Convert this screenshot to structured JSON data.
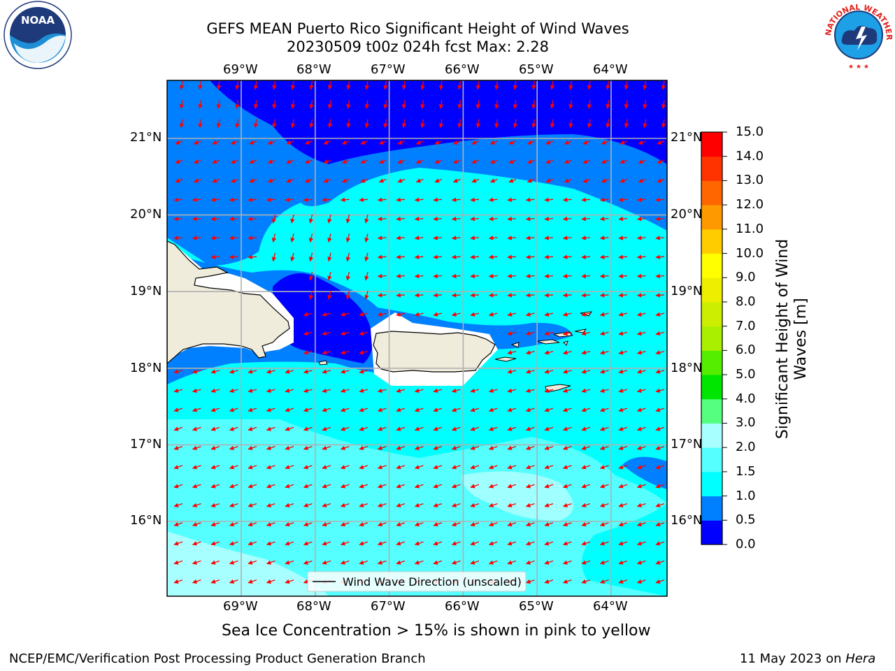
{
  "header": {
    "title_line1": "GEFS MEAN Puerto Rico Significant Height of Wind Waves",
    "title_line2": "20230509 t00z 024h fcst   Max: 2.28"
  },
  "logos": {
    "left": "NOAA",
    "right": "NATIONAL WEATHER SERVICE"
  },
  "map": {
    "lon_labels": [
      "69°W",
      "68°W",
      "67°W",
      "66°W",
      "65°W",
      "64°W"
    ],
    "lat_labels": [
      "21°N",
      "20°N",
      "19°N",
      "18°N",
      "17°N",
      "16°N"
    ],
    "lon_values": [
      -69,
      -68,
      -67,
      -66,
      -65,
      -64
    ],
    "lat_values": [
      21,
      20,
      19,
      18,
      17,
      16
    ],
    "legend_label": "Wind Wave Direction (unscaled)",
    "arrow_color": "#ff0000",
    "land_color": "#efecdc"
  },
  "colorbar": {
    "label": "Significant Height of Wind Waves [m]",
    "ticks": [
      "15.0",
      "14.0",
      "13.0",
      "12.0",
      "11.0",
      "10.0",
      "9.0",
      "8.0",
      "7.0",
      "6.0",
      "5.0",
      "4.0",
      "3.0",
      "2.0",
      "1.5",
      "1.0",
      "0.5",
      "0.0"
    ],
    "colors": [
      "#0000ff",
      "#0080ff",
      "#00ffff",
      "#55ffff",
      "#a8ffff",
      "#55ff80",
      "#00e600",
      "#55ee00",
      "#aaee00",
      "#ccee00",
      "#eeee00",
      "#ffff00",
      "#ffcc00",
      "#ff9900",
      "#ff6600",
      "#ff3300",
      "#ff0000"
    ]
  },
  "sea_ice_note": "Sea Ice Concentration > 15% is shown in pink to yellow",
  "footer": {
    "left": "NCEP/EMC/Verification Post Processing Product Generation Branch",
    "right_prefix": "11 May 2023 on ",
    "right_host": "Hera"
  }
}
